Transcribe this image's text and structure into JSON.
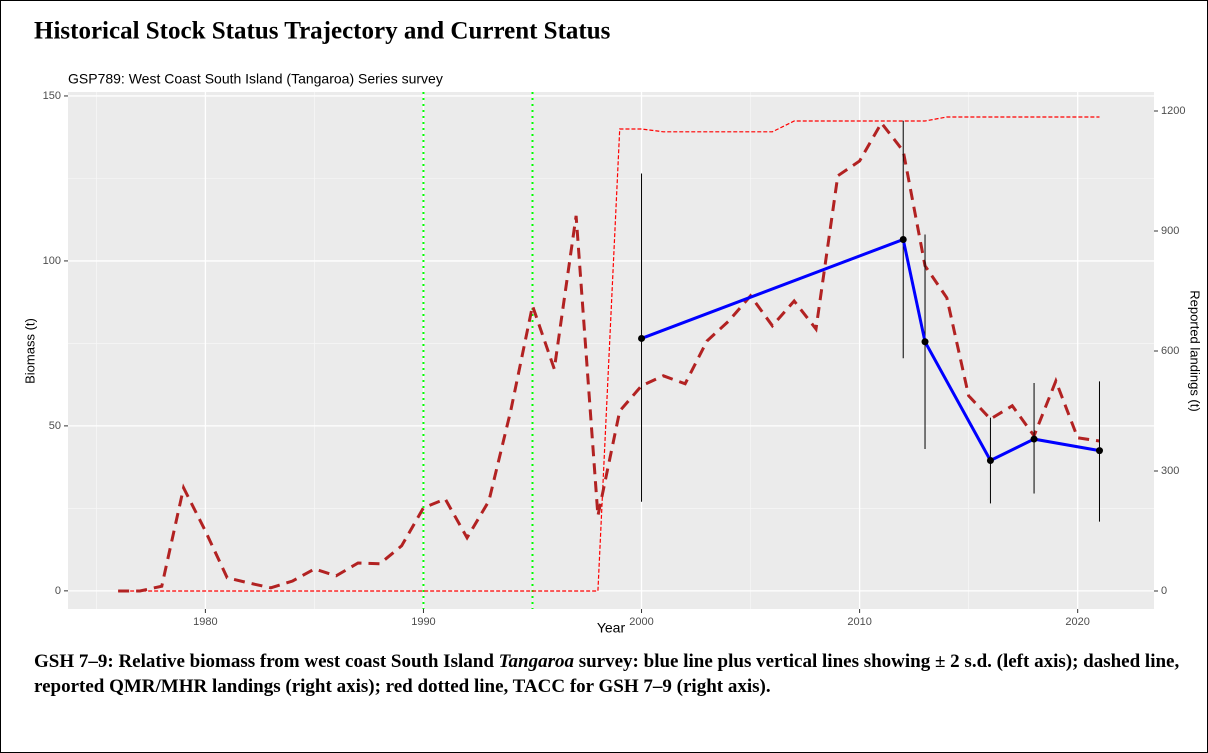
{
  "heading": "Historical Stock Status Trajectory and Current Status",
  "caption": [
    "GSH 7–9: Relative biomass from west coast South Island ",
    "Tangaroa",
    " survey: blue line plus vertical lines showing ± 2 s.d. (left axis); dashed line, reported QMR/MHR landings (right axis); red dotted line, TACC for GSH 7–9 (right axis)."
  ],
  "chart_data": {
    "type": "line",
    "title": "GSP789: West Coast South Island (Tangaroa) Series survey",
    "x_label": "Year",
    "y_label": "Biomass (t)",
    "y2_label": "Reported landings (t)",
    "xlim": [
      1973.7,
      2023.5
    ],
    "xticks": [
      1980,
      1990,
      2000,
      2010,
      2020
    ],
    "xminor_ticks": [
      1975,
      1985,
      1995,
      2005,
      2015
    ],
    "ylim": [
      -5.5,
      151.2
    ],
    "yticks": [
      0,
      50,
      100,
      150
    ],
    "yminor_ticks": [
      25,
      75,
      125
    ],
    "y2lim": [
      -45,
      1247.5
    ],
    "y2ticks": [
      0,
      300,
      600,
      900,
      1200
    ],
    "grid": true,
    "vlines": {
      "x": [
        1990,
        1995
      ],
      "color": "#00ff00"
    },
    "series": [
      {
        "name": "Biomass",
        "color": "#0000ff",
        "style": "solid",
        "x": [
          2000,
          2012,
          2013,
          2016,
          2018,
          2021
        ],
        "values": [
          76.5,
          106.5,
          75.5,
          39.5,
          46,
          42.5
        ],
        "lower": [
          27,
          70.5,
          43,
          26.5,
          29.5,
          21
        ],
        "upper": [
          126.5,
          142.5,
          108,
          52.5,
          63,
          63.5
        ]
      },
      {
        "name": "Reported landings",
        "color": "#b22222",
        "style": "dashed",
        "axis": "y2",
        "x": [
          1976,
          1977,
          1978,
          1979,
          1980,
          1981,
          1982,
          1983,
          1984,
          1985,
          1986,
          1987,
          1988,
          1989,
          1990,
          1991,
          1992,
          1993,
          1994,
          1995,
          1996,
          1997,
          1998,
          1999,
          2000,
          2001,
          2002,
          2003,
          2004,
          2005,
          2006,
          2007,
          2008,
          2009,
          2010,
          2011,
          2012,
          2013,
          2014,
          2015,
          2016,
          2017,
          2018,
          2019,
          2020,
          2021
        ],
        "values": [
          0,
          0,
          12,
          258,
          150,
          33,
          20,
          8,
          25,
          55,
          38,
          70,
          68,
          113,
          208,
          230,
          133,
          225,
          450,
          713,
          555,
          938,
          188,
          450,
          513,
          538,
          518,
          625,
          675,
          738,
          663,
          725,
          655,
          1038,
          1075,
          1170,
          1100,
          813,
          733,
          488,
          430,
          463,
          388,
          525,
          383,
          375
        ]
      },
      {
        "name": "TACC",
        "color": "#ff0000",
        "style": "dotted",
        "axis": "y2",
        "x": [
          1976,
          1977,
          1978,
          1979,
          1980,
          1981,
          1982,
          1983,
          1984,
          1985,
          1986,
          1987,
          1988,
          1989,
          1990,
          1991,
          1992,
          1993,
          1994,
          1995,
          1996,
          1997,
          1998,
          1999,
          2000,
          2001,
          2002,
          2003,
          2004,
          2005,
          2006,
          2007,
          2008,
          2009,
          2010,
          2011,
          2012,
          2013,
          2014,
          2015,
          2016,
          2017,
          2018,
          2019,
          2020,
          2021
        ],
        "values": [
          0,
          0,
          0,
          0,
          0,
          0,
          0,
          0,
          0,
          0,
          0,
          0,
          0,
          0,
          0,
          0,
          0,
          0,
          0,
          0,
          0,
          0,
          0,
          1155,
          1155,
          1148,
          1148,
          1148,
          1148,
          1148,
          1148,
          1175,
          1175,
          1175,
          1175,
          1175,
          1175,
          1175,
          1185,
          1185,
          1185,
          1185,
          1185,
          1185,
          1185,
          1185
        ]
      }
    ]
  }
}
